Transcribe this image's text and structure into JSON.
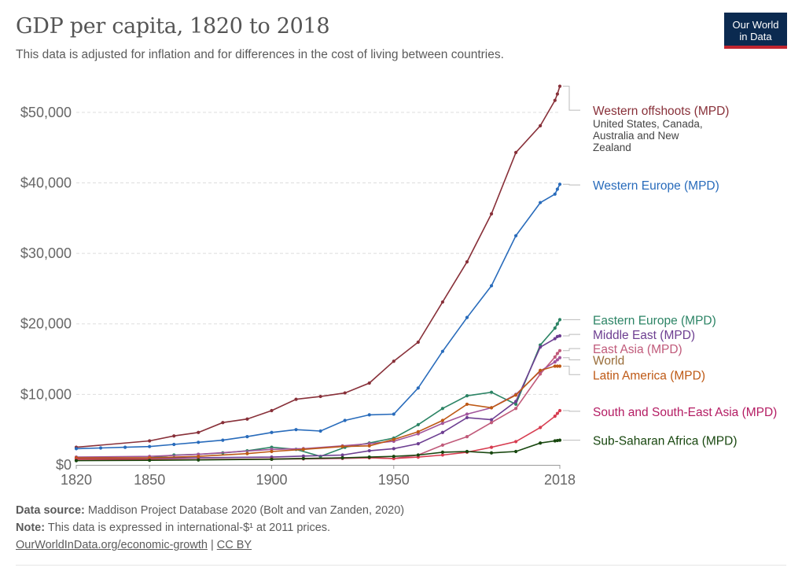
{
  "header": {
    "title": "GDP per capita, 1820 to 2018",
    "subtitle": "This data is adjusted for inflation and for differences in the cost of living between countries.",
    "logo_line1": "Our World",
    "logo_line2": "in Data"
  },
  "footer": {
    "source_label": "Data source:",
    "source_text": "Maddison Project Database 2020 (Bolt and van Zanden, 2020)",
    "note_label": "Note:",
    "note_text": "This data is expressed in international-$¹ at 2011 prices.",
    "link": "OurWorldInData.org/economic-growth",
    "separator": "|",
    "license": "CC BY"
  },
  "chart_data": {
    "type": "line",
    "title": "GDP per capita, 1820 to 2018",
    "xlabel": "",
    "ylabel": "",
    "xlim": [
      1820,
      2018
    ],
    "ylim": [
      0,
      55000
    ],
    "x_ticks": [
      1820,
      1850,
      1900,
      1950,
      2018
    ],
    "y_ticks": [
      {
        "v": 0,
        "label": "$0"
      },
      {
        "v": 10000,
        "label": "$10,000"
      },
      {
        "v": 20000,
        "label": "$20,000"
      },
      {
        "v": 30000,
        "label": "$30,000"
      },
      {
        "v": 40000,
        "label": "$40,000"
      },
      {
        "v": 50000,
        "label": "$50,000"
      }
    ],
    "grid": true,
    "legend": "right (labels at line ends)",
    "series": [
      {
        "name": "Western offshoots (MPD)",
        "sublabel": [
          "United States, Canada,",
          "Australia and New",
          "Zealand"
        ],
        "color": "#883039",
        "labelY": 50300,
        "points": [
          [
            1820,
            2500
          ],
          [
            1850,
            3400
          ],
          [
            1860,
            4100
          ],
          [
            1870,
            4600
          ],
          [
            1880,
            6000
          ],
          [
            1890,
            6500
          ],
          [
            1900,
            7700
          ],
          [
            1910,
            9300
          ],
          [
            1920,
            9700
          ],
          [
            1930,
            10200
          ],
          [
            1940,
            11600
          ],
          [
            1950,
            14700
          ],
          [
            1960,
            17400
          ],
          [
            1970,
            23100
          ],
          [
            1980,
            28800
          ],
          [
            1990,
            35600
          ],
          [
            2000,
            44300
          ],
          [
            2010,
            48100
          ],
          [
            2016,
            51700
          ],
          [
            2017,
            52600
          ],
          [
            2018,
            53700
          ]
        ]
      },
      {
        "name": "Western Europe (MPD)",
        "color": "#286bbb",
        "labelY": 39700,
        "points": [
          [
            1820,
            2300
          ],
          [
            1830,
            2400
          ],
          [
            1840,
            2500
          ],
          [
            1850,
            2600
          ],
          [
            1860,
            2900
          ],
          [
            1870,
            3200
          ],
          [
            1880,
            3500
          ],
          [
            1890,
            4000
          ],
          [
            1900,
            4600
          ],
          [
            1910,
            5000
          ],
          [
            1920,
            4800
          ],
          [
            1930,
            6300
          ],
          [
            1940,
            7100
          ],
          [
            1950,
            7200
          ],
          [
            1960,
            10900
          ],
          [
            1970,
            16100
          ],
          [
            1980,
            20900
          ],
          [
            1990,
            25400
          ],
          [
            2000,
            32500
          ],
          [
            2010,
            37200
          ],
          [
            2016,
            38400
          ],
          [
            2017,
            39100
          ],
          [
            2018,
            39800
          ]
        ]
      },
      {
        "name": "Eastern Europe (MPD)",
        "color": "#2c8465",
        "labelY": 20600,
        "points": [
          [
            1820,
            900
          ],
          [
            1850,
            1000
          ],
          [
            1860,
            1400
          ],
          [
            1870,
            1500
          ],
          [
            1880,
            1700
          ],
          [
            1890,
            2000
          ],
          [
            1900,
            2500
          ],
          [
            1910,
            2200
          ],
          [
            1920,
            1200
          ],
          [
            1930,
            2500
          ],
          [
            1940,
            3100
          ],
          [
            1950,
            3800
          ],
          [
            1960,
            5700
          ],
          [
            1970,
            8000
          ],
          [
            1980,
            9800
          ],
          [
            1990,
            10300
          ],
          [
            2000,
            8600
          ],
          [
            2010,
            17000
          ],
          [
            2016,
            19400
          ],
          [
            2017,
            20000
          ],
          [
            2018,
            20600
          ]
        ]
      },
      {
        "name": "Middle East (MPD)",
        "color": "#6d3e91",
        "labelY": 18500,
        "points": [
          [
            1820,
            900
          ],
          [
            1850,
            950
          ],
          [
            1870,
            1000
          ],
          [
            1900,
            1100
          ],
          [
            1913,
            1250
          ],
          [
            1929,
            1400
          ],
          [
            1940,
            2000
          ],
          [
            1950,
            2300
          ],
          [
            1960,
            3000
          ],
          [
            1970,
            4600
          ],
          [
            1980,
            6700
          ],
          [
            1990,
            6400
          ],
          [
            2000,
            9000
          ],
          [
            2010,
            16700
          ],
          [
            2016,
            17900
          ],
          [
            2017,
            18200
          ],
          [
            2018,
            18300
          ]
        ]
      },
      {
        "name": "East Asia (MPD)",
        "color": "#c05a7a",
        "labelY": 16500,
        "points": [
          [
            1820,
            800
          ],
          [
            1850,
            780
          ],
          [
            1870,
            750
          ],
          [
            1900,
            800
          ],
          [
            1913,
            850
          ],
          [
            1929,
            900
          ],
          [
            1940,
            1000
          ],
          [
            1950,
            900
          ],
          [
            1960,
            1400
          ],
          [
            1970,
            2800
          ],
          [
            1980,
            4000
          ],
          [
            1990,
            6000
          ],
          [
            2000,
            8000
          ],
          [
            2010,
            12900
          ],
          [
            2016,
            15300
          ],
          [
            2017,
            15800
          ],
          [
            2018,
            16200
          ]
        ]
      },
      {
        "name": "World",
        "color": "#a2559c",
        "textColor": "#996d39",
        "labelY": 14900,
        "points": [
          [
            1820,
            1100
          ],
          [
            1850,
            1200
          ],
          [
            1870,
            1500
          ],
          [
            1900,
            2200
          ],
          [
            1913,
            2300
          ],
          [
            1929,
            2700
          ],
          [
            1940,
            3000
          ],
          [
            1950,
            3350
          ],
          [
            1960,
            4400
          ],
          [
            1970,
            5900
          ],
          [
            1980,
            7200
          ],
          [
            1990,
            8100
          ],
          [
            2000,
            10000
          ],
          [
            2010,
            13300
          ],
          [
            2016,
            14600
          ],
          [
            2017,
            14900
          ],
          [
            2018,
            15200
          ]
        ]
      },
      {
        "name": "Latin America (MPD)",
        "color": "#be5915",
        "labelY": 12800,
        "points": [
          [
            1820,
            1000
          ],
          [
            1850,
            1000
          ],
          [
            1870,
            1200
          ],
          [
            1890,
            1600
          ],
          [
            1900,
            1900
          ],
          [
            1913,
            2200
          ],
          [
            1929,
            2600
          ],
          [
            1940,
            2700
          ],
          [
            1950,
            3600
          ],
          [
            1960,
            4700
          ],
          [
            1970,
            6300
          ],
          [
            1980,
            8600
          ],
          [
            1990,
            8100
          ],
          [
            2000,
            9900
          ],
          [
            2010,
            13400
          ],
          [
            2016,
            14000
          ],
          [
            2017,
            14000
          ],
          [
            2018,
            14000
          ]
        ]
      },
      {
        "name": "South and South-East Asia (MPD)",
        "color": "#d73c50",
        "textColor": "#b41c63",
        "labelY": 7600,
        "points": [
          [
            1820,
            800
          ],
          [
            1850,
            780
          ],
          [
            1870,
            750
          ],
          [
            1900,
            850
          ],
          [
            1913,
            900
          ],
          [
            1929,
            1000
          ],
          [
            1940,
            1000
          ],
          [
            1950,
            900
          ],
          [
            1960,
            1100
          ],
          [
            1970,
            1400
          ],
          [
            1980,
            1800
          ],
          [
            1990,
            2500
          ],
          [
            2000,
            3300
          ],
          [
            2010,
            5300
          ],
          [
            2016,
            6900
          ],
          [
            2017,
            7300
          ],
          [
            2018,
            7700
          ]
        ]
      },
      {
        "name": "Sub-Saharan Africa (MPD)",
        "color": "#18470f",
        "labelY": 3500,
        "points": [
          [
            1820,
            600
          ],
          [
            1850,
            650
          ],
          [
            1870,
            700
          ],
          [
            1900,
            800
          ],
          [
            1913,
            900
          ],
          [
            1929,
            1000
          ],
          [
            1940,
            1100
          ],
          [
            1950,
            1200
          ],
          [
            1960,
            1400
          ],
          [
            1970,
            1800
          ],
          [
            1980,
            1900
          ],
          [
            1990,
            1700
          ],
          [
            2000,
            1900
          ],
          [
            2010,
            3100
          ],
          [
            2016,
            3400
          ],
          [
            2017,
            3450
          ],
          [
            2018,
            3500
          ]
        ]
      }
    ]
  }
}
